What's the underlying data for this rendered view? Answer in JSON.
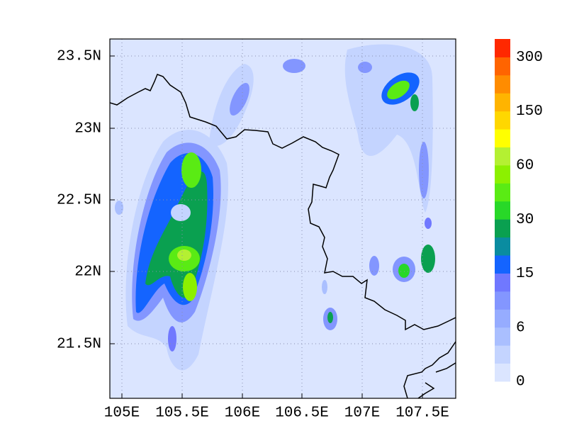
{
  "map": {
    "x_ticks": [
      "105E",
      "105.5E",
      "106E",
      "106.5E",
      "107E",
      "107.5E"
    ],
    "y_ticks": [
      "23.5N",
      "23N",
      "22.5N",
      "22N",
      "21.5N"
    ],
    "colorbar": {
      "colors": [
        "#dbe5ff",
        "#c4d4ff",
        "#aabfff",
        "#96acff",
        "#8396ff",
        "#7078ff",
        "#1464ff",
        "#0a8ca0",
        "#0aa050",
        "#28d828",
        "#5aeb14",
        "#8cf000",
        "#b4f032",
        "#ffff00",
        "#ffd700",
        "#ffb400",
        "#ff8c00",
        "#ff6400",
        "#ff2800"
      ],
      "labels": [
        "0",
        "6",
        "15",
        "30",
        "60",
        "150",
        "300"
      ]
    }
  }
}
